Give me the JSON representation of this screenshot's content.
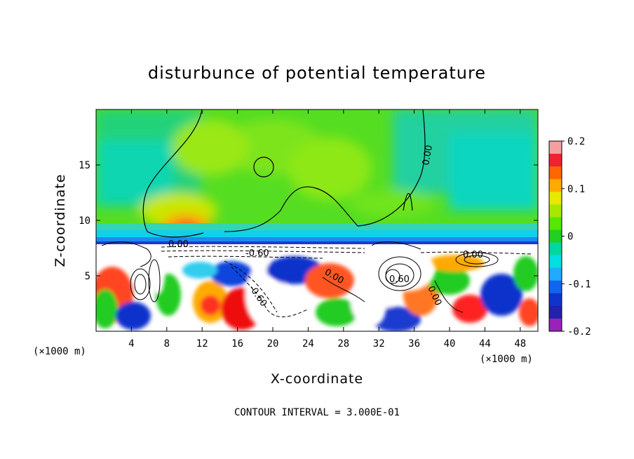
{
  "chart_data": {
    "type": "heatmap",
    "title": "disturbunce of potential temperature",
    "xlabel": "X-coordinate",
    "ylabel": "Z-coordinate",
    "x_unit": "(×1000 m)",
    "xlim": [
      0,
      50
    ],
    "ylim": [
      0,
      20
    ],
    "xticks": [
      4,
      8,
      12,
      16,
      20,
      24,
      28,
      32,
      36,
      40,
      44,
      48
    ],
    "yticks": [
      5,
      10,
      15
    ],
    "colorbar": {
      "range": [
        -0.2,
        0.2
      ],
      "ticks": [
        0.2,
        0.1,
        0,
        -0.1,
        -0.2
      ],
      "tick_labels": [
        "0.2",
        "0.1",
        "0",
        "-0.1",
        "-0.2"
      ],
      "colors": [
        "#f5a0a0",
        "#ee2233",
        "#ff6600",
        "#ffaa00",
        "#e8e800",
        "#a8e800",
        "#55e800",
        "#22d022",
        "#00d8a0",
        "#00e0e0",
        "#22aaff",
        "#1166ee",
        "#1133cc",
        "#2222aa",
        "#9922bb"
      ]
    },
    "contour_labels": [
      "0.00",
      "0.00",
      "-0.60",
      "0.00",
      "0.60",
      "-0.60",
      "0.00",
      "0.00"
    ],
    "contour_interval_text": "CONTOUR INTERVAL = 3.000E-01"
  }
}
